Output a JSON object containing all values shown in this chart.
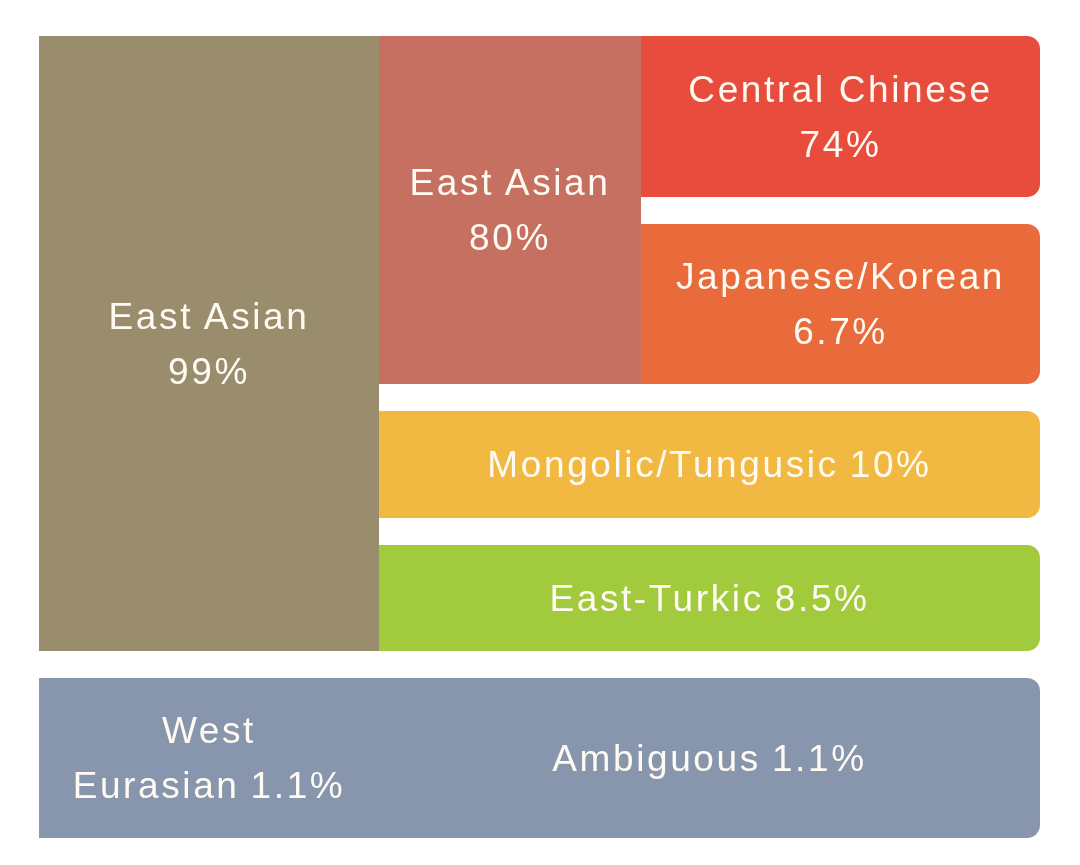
{
  "chart_data": {
    "type": "other",
    "categories": [
      "East Asian",
      "East Asian",
      "Central Chinese",
      "Japanese/Korean",
      "Mongolic/Tungusic",
      "East-Turkic",
      "West Eurasian",
      "Ambiguous"
    ],
    "values": [
      99,
      80,
      74,
      6.7,
      10,
      8.5,
      1.1,
      1.1
    ],
    "value_labels": [
      "99%",
      "80%",
      "74%",
      "6.7%",
      "10%",
      "8.5%",
      "1.1%",
      "1.1%"
    ],
    "colors": [
      "#998d6d",
      "#c57060",
      "#e84c3d",
      "#e96b3c",
      "#f2b942",
      "#a1ca3d",
      "#8796ad",
      "#8796ad"
    ]
  }
}
